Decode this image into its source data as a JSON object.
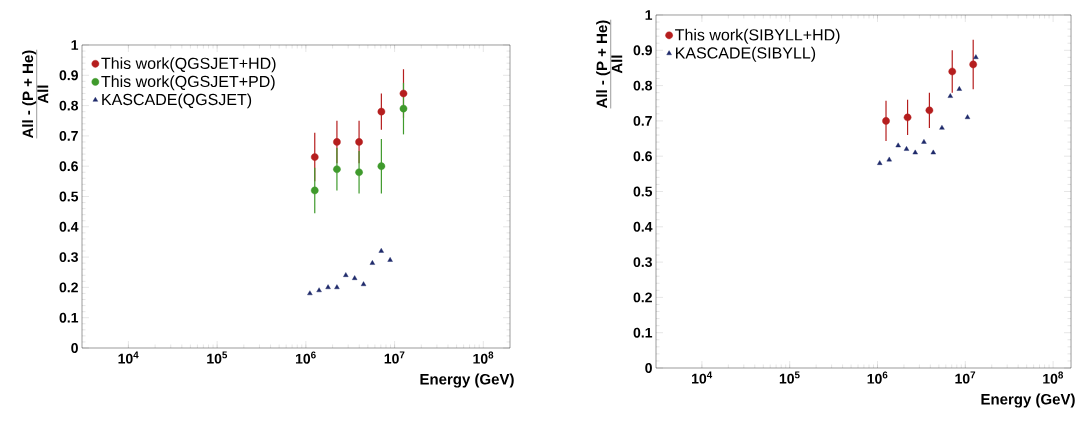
{
  "chart_data": [
    {
      "type": "scatter",
      "xlabel": "Energy (GeV)",
      "ylabel": "\\frac{\\textbf{All - (P + He)}}{\\textbf{All}}",
      "log": "x",
      "legend": "top left",
      "xlim": [
        3000,
        200000000
      ],
      "ylim": [
        0,
        1
      ],
      "xticks": [
        {
          "value": 10000,
          "label": "10$^{4}$"
        },
        {
          "value": 100000,
          "label": "10$^{5}$"
        },
        {
          "value": 1000000,
          "label": "10$^{6}$"
        },
        {
          "value": 10000000,
          "label": "10$^{7}$"
        },
        {
          "value": 100000000,
          "label": "10$^{8}$"
        }
      ],
      "yticks": [
        0,
        0.1,
        0.2,
        0.3,
        0.4,
        0.5,
        0.6,
        0.7,
        0.8,
        0.9,
        1
      ],
      "series": [
        {
          "name": "This work(QGSJET+HD)",
          "color": "#b51e1e",
          "marker": "circle",
          "x": [
            1260000,
            2240000,
            3980000,
            7100000,
            12600000
          ],
          "values": [
            0.63,
            0.68,
            0.68,
            0.78,
            0.84
          ],
          "errors": [
            0.08,
            0.07,
            0.07,
            0.06,
            0.08
          ]
        },
        {
          "name": "This work(QGSJET+PD)",
          "color": "#3f9a2c",
          "marker": "circle",
          "x": [
            1260000,
            2240000,
            3980000,
            7100000,
            12600000
          ],
          "values": [
            0.52,
            0.59,
            0.58,
            0.6,
            0.79
          ],
          "errors": [
            0.075,
            0.07,
            0.07,
            0.09,
            0.085
          ]
        },
        {
          "name": "KASCADE(QGSJET)",
          "color": "#1f2a6b",
          "marker": "triangle",
          "x": [
            1110000,
            1410000,
            1780000,
            2240000,
            2820000,
            3550000,
            4470000,
            5620000,
            7080000,
            8910000
          ],
          "values": [
            0.18,
            0.19,
            0.2,
            0.2,
            0.24,
            0.23,
            0.21,
            0.28,
            0.32,
            0.29
          ]
        }
      ]
    },
    {
      "type": "scatter",
      "xlabel": "Energy (GeV)",
      "ylabel": "\\frac{\\textbf{All - (P + He)}}{\\textbf{All}}",
      "log": "x",
      "legend": "top left",
      "xlim": [
        3000,
        160000000
      ],
      "ylim": [
        0,
        1
      ],
      "xticks": [
        {
          "value": 10000,
          "label": "10$^{4}$"
        },
        {
          "value": 100000,
          "label": "10$^{5}$"
        },
        {
          "value": 1000000,
          "label": "10$^{6}$"
        },
        {
          "value": 10000000,
          "label": "10$^{7}$"
        },
        {
          "value": 100000000,
          "label": "10$^{8}$"
        }
      ],
      "yticks": [
        0,
        0.1,
        0.2,
        0.3,
        0.4,
        0.5,
        0.6,
        0.7,
        0.8,
        0.9,
        1
      ],
      "series": [
        {
          "name": "This work(SIBYLL+HD)",
          "color": "#b51e1e",
          "marker": "circle",
          "x": [
            1250000,
            2200000,
            3900000,
            7100000,
            12300000
          ],
          "values": [
            0.7,
            0.71,
            0.73,
            0.84,
            0.86
          ],
          "errors": [
            0.057,
            0.05,
            0.05,
            0.06,
            0.07
          ]
        },
        {
          "name": "KASCADE(SIBYLL)",
          "color": "#1f2a6b",
          "marker": "triangle",
          "x": [
            1060000,
            1360000,
            1720000,
            2140000,
            2690000,
            3380000,
            4320000,
            5420000,
            6750000,
            8550000,
            10600000,
            13200000
          ],
          "values": [
            0.58,
            0.59,
            0.63,
            0.62,
            0.61,
            0.64,
            0.61,
            0.68,
            0.77,
            0.79,
            0.71,
            0.88
          ]
        }
      ]
    }
  ]
}
